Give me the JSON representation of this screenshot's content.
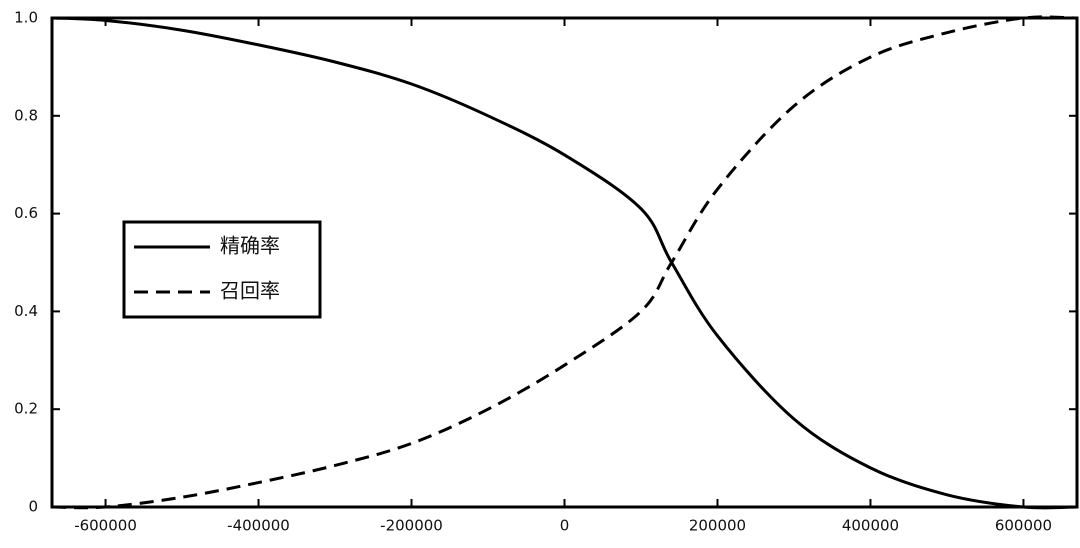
{
  "chart_data": {
    "type": "line",
    "x": [
      -670000,
      -600000,
      -500000,
      -400000,
      -300000,
      -200000,
      -100000,
      0,
      100000,
      140000,
      200000,
      300000,
      400000,
      500000,
      600000,
      670000
    ],
    "series": [
      {
        "name": "精确率",
        "color": "#000000",
        "dash": "solid",
        "values": [
          1.0,
          0.995,
          0.975,
          0.945,
          0.91,
          0.865,
          0.8,
          0.72,
          0.61,
          0.5,
          0.35,
          0.18,
          0.08,
          0.025,
          0,
          0
        ]
      },
      {
        "name": "召回率",
        "color": "#000000",
        "dash": "dashed",
        "values": [
          0,
          0,
          0.02,
          0.05,
          0.085,
          0.13,
          0.2,
          0.29,
          0.4,
          0.5,
          0.65,
          0.82,
          0.92,
          0.97,
          1.0,
          1.0
        ]
      }
    ],
    "xlim": [
      -670000,
      670000
    ],
    "ylim": [
      0,
      1
    ],
    "xticks": [
      -600000,
      -400000,
      -200000,
      0,
      200000,
      400000,
      600000
    ],
    "yticks": [
      0,
      0.2,
      0.4,
      0.6,
      0.8,
      {
        "value": 1,
        "label": "1.0"
      }
    ],
    "grid": false,
    "legend": "left"
  }
}
